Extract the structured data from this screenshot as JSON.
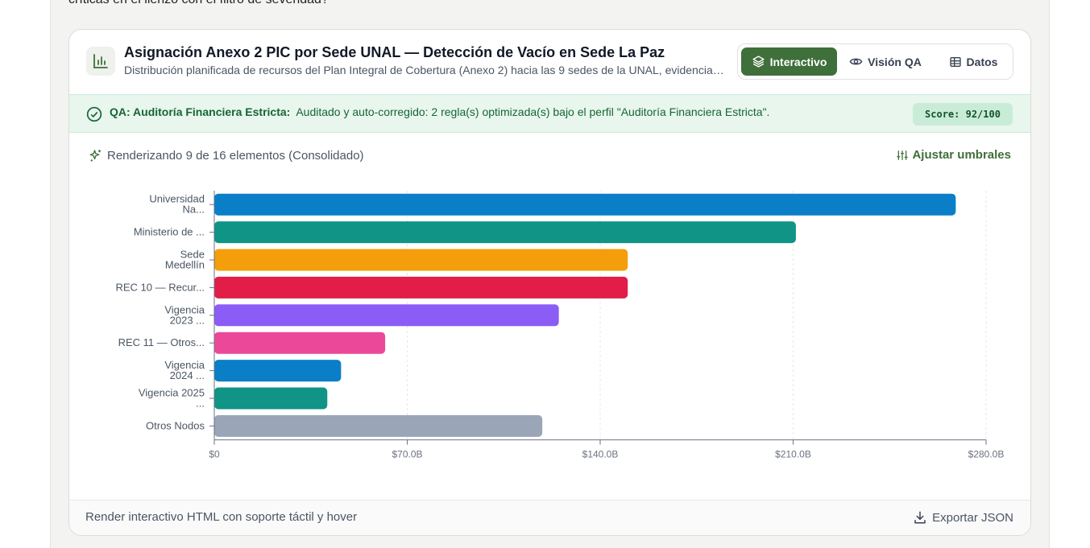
{
  "prompt_tail": "críticas en el lienzo con el filtro de severidad?",
  "card": {
    "title": "Asignación Anexo 2 PIC por Sede UNAL — Detección de Vacío en Sede La Paz",
    "subtitle": "Distribución planificada de recursos del Plan Integral de Cobertura (Anexo 2) hacia las 9 sedes de la UNAL, evidenciando el vacío de asignación en la Sede La Paz",
    "icon": "bar-chart-icon"
  },
  "tabs": [
    {
      "label": "Interactivo",
      "icon": "layers-icon",
      "active": true
    },
    {
      "label": "Visión QA",
      "icon": "eye-icon",
      "active": false
    },
    {
      "label": "Datos",
      "icon": "table-icon",
      "active": false
    }
  ],
  "qa": {
    "label": "QA: Auditoría Financiera Estricta:",
    "message": "Auditado y auto-corregido: 2 regla(s) optimizada(s) bajo el perfil \"Auditoría Financiera Estricta\".",
    "score": "Score: 92/100",
    "color": "#166534"
  },
  "render_info": "Renderizando 9 de 16 elementos (Consolidado)",
  "adjust_label": "Ajustar umbrales",
  "footer": {
    "left": "Render interactivo HTML con soporte táctil y hover",
    "export_label": "Exportar JSON"
  },
  "chart_data": {
    "type": "bar",
    "orientation": "horizontal",
    "categories": [
      [
        "Universidad",
        "Na..."
      ],
      [
        "Ministerio de ..."
      ],
      [
        "Sede",
        "Medellín"
      ],
      [
        "REC 10 — Recur..."
      ],
      [
        "Vigencia",
        "2023 ..."
      ],
      [
        "REC 11 — Otros..."
      ],
      [
        "Vigencia",
        "2024 ..."
      ],
      [
        "Vigencia 2025",
        "..."
      ],
      [
        "Otros Nodos"
      ]
    ],
    "values": [
      269,
      211,
      150,
      150,
      125,
      62,
      46,
      41,
      119
    ],
    "colors": [
      "#0a7fc7",
      "#0f9486",
      "#f59e0b",
      "#e11d48",
      "#8b5cf6",
      "#ec4899",
      "#0a7fc7",
      "#0f9486",
      "#9aa5b8"
    ],
    "unit": "B",
    "xlim": [
      0,
      280
    ],
    "xticks": [
      0,
      70,
      140,
      210,
      280
    ],
    "xtick_labels": [
      "$0",
      "$70.0B",
      "$140.0B",
      "$210.0B",
      "$280.0B"
    ],
    "grid": true
  }
}
